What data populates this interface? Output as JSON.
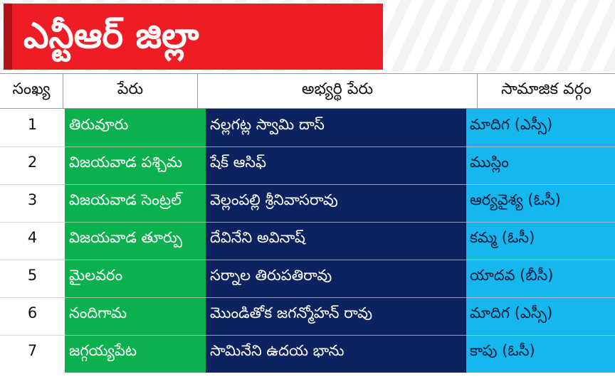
{
  "title": "ఎన్టీఆర్ జిల్లా",
  "colors": {
    "title_bg": "#ee1c25",
    "constituency_col": "#0bb14d",
    "candidate_col": "#0d2260",
    "community_col": "#16b6ee"
  },
  "headers": {
    "serial": "సంఖ్య",
    "name": "పేరు",
    "candidate": "అభ్యర్థి పేరు",
    "community": "సామాజిక వర్గం"
  },
  "rows": [
    {
      "num": "1",
      "name": "తిరువూరు",
      "candidate": "నల్లగట్ల స్వామి దాస్",
      "community": "మాదిగ (ఎస్సీ)"
    },
    {
      "num": "2",
      "name": "విజయవాడ పశ్చిమ",
      "candidate": "షేక్ ఆసిఫ్",
      "community": "ముస్లిం"
    },
    {
      "num": "3",
      "name": "విజయవాడ సెంట్రల్",
      "candidate": "వెల్లంపల్లి శ్రీనివాసరావు",
      "community": "ఆర్యవైశ్య (ఓసీ)"
    },
    {
      "num": "4",
      "name": "విజయవాడ తూర్పు",
      "candidate": "దేవినేని అవినాష్",
      "community": "కమ్మ (ఓసీ)"
    },
    {
      "num": "5",
      "name": "మైలవరం",
      "candidate": "సర్నాల తిరుపతిరావు",
      "community": "యాదవ (బీసీ)"
    },
    {
      "num": "6",
      "name": "నందిగామ",
      "candidate": "మొండితోక జగన్మోహన్ రావు",
      "community": "మాదిగ (ఎస్సీ)"
    },
    {
      "num": "7",
      "name": "జగ్గయ్యపేట",
      "candidate": "సామినేని ఉదయ భాను",
      "community": "కాపు (ఓసీ)"
    }
  ]
}
